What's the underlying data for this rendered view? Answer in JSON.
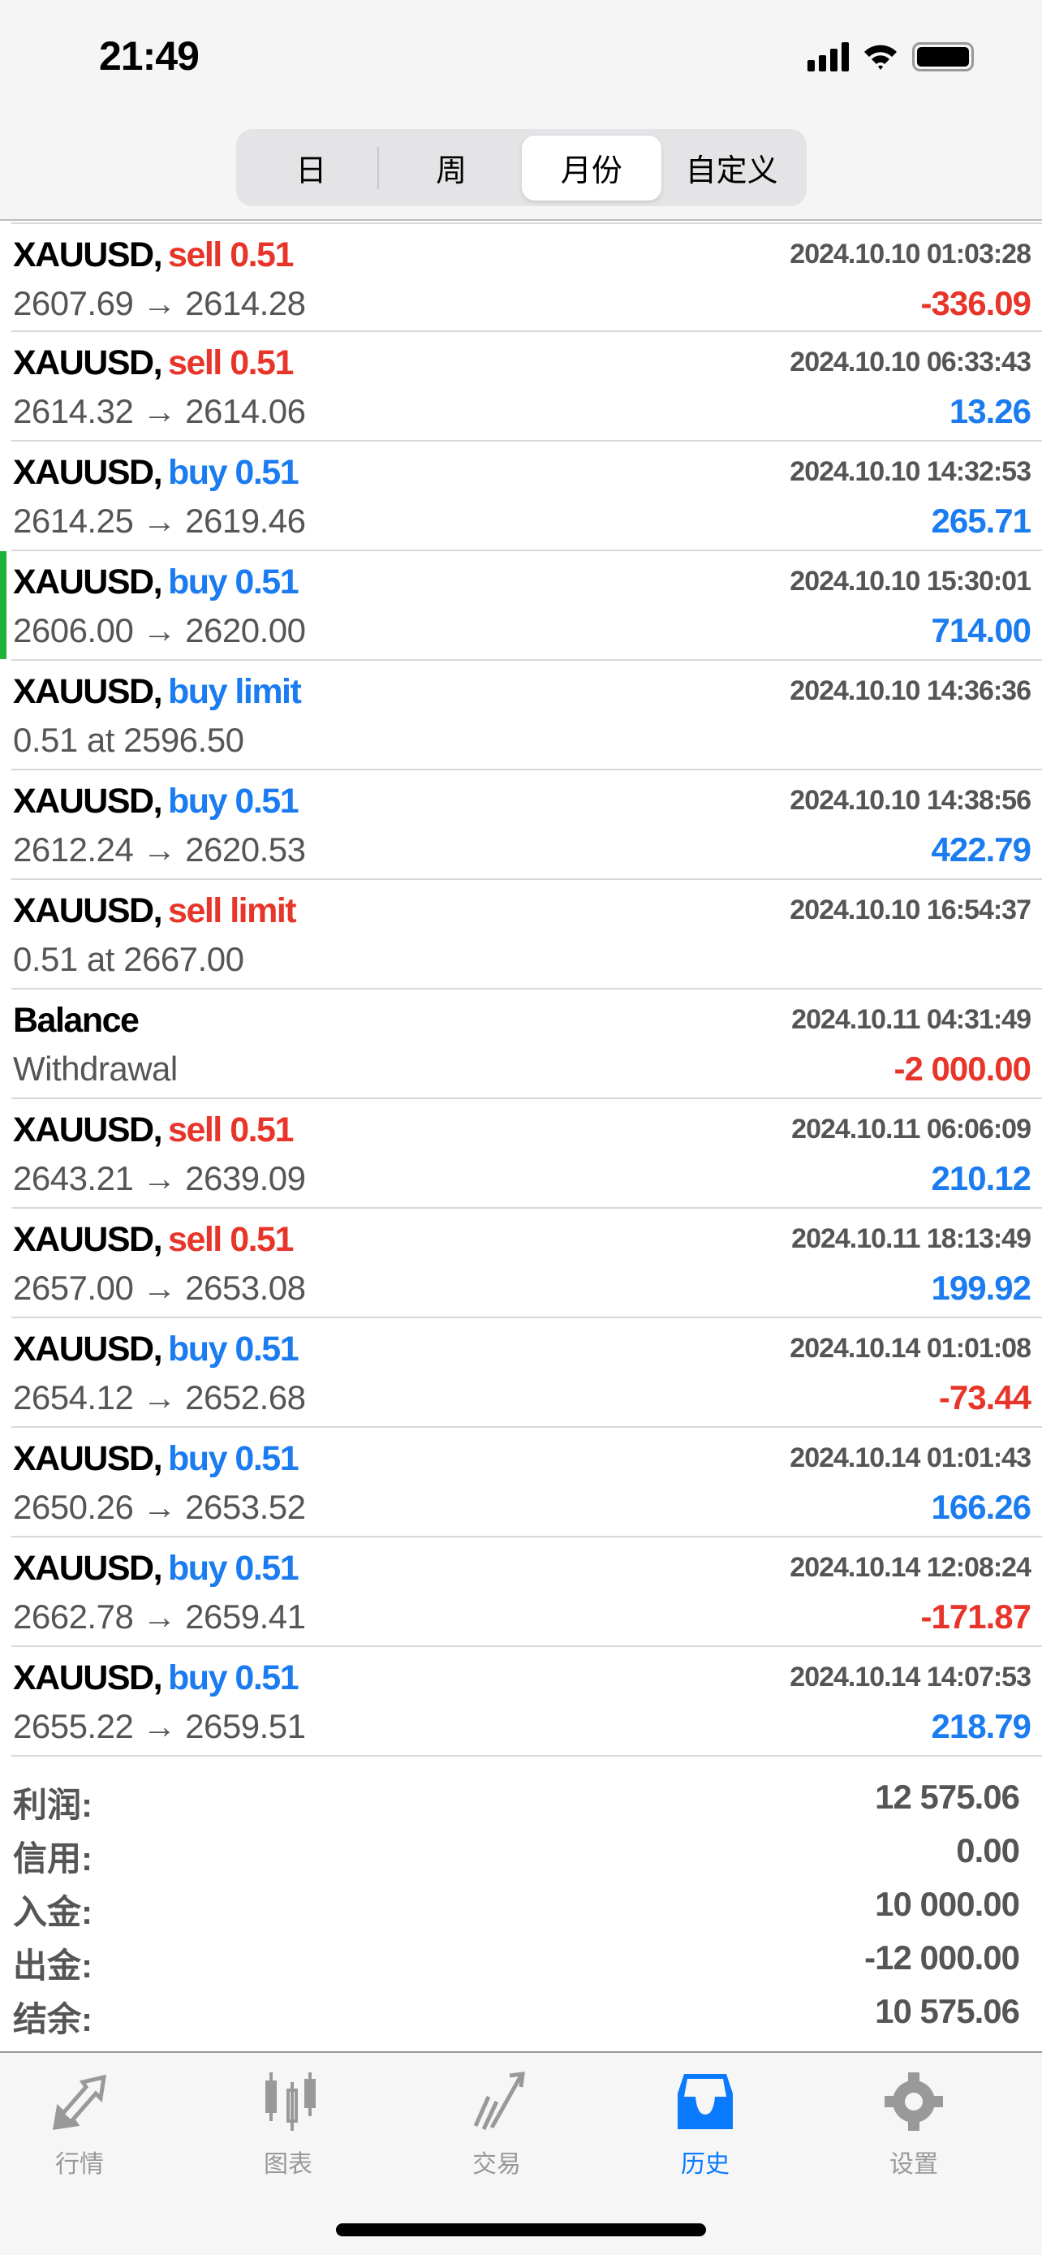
{
  "status_bar": {
    "time": "21:49"
  },
  "segments": {
    "items": [
      "日",
      "周",
      "月份",
      "自定义"
    ],
    "active": 2
  },
  "colors": {
    "sell": "#e8352a",
    "buy": "#1a7cf0",
    "loss": "#e8352a",
    "gain": "#1a7cf0",
    "active_tab": "#0a7aff",
    "marker": "#1fb33b"
  },
  "rows": [
    {
      "symbol": "XAUUSD,",
      "side": "sell 0.51",
      "type": "sell",
      "date": "2024.10.10 01:03:28",
      "prices": "2607.69 → 2614.28",
      "profit": "-336.09",
      "neg": true
    },
    {
      "symbol": "XAUUSD,",
      "side": "sell 0.51",
      "type": "sell",
      "date": "2024.10.10 06:33:43",
      "prices": "2614.32 → 2614.06",
      "profit": "13.26",
      "neg": false
    },
    {
      "symbol": "XAUUSD,",
      "side": "buy 0.51",
      "type": "buy",
      "date": "2024.10.10 14:32:53",
      "prices": "2614.25 → 2619.46",
      "profit": "265.71",
      "neg": false
    },
    {
      "symbol": "XAUUSD,",
      "side": "buy 0.51",
      "type": "buy",
      "date": "2024.10.10 15:30:01",
      "prices": "2606.00 → 2620.00",
      "profit": "714.00",
      "neg": false,
      "marked": true
    },
    {
      "symbol": "XAUUSD,",
      "side": "buy limit",
      "type": "buy",
      "date": "2024.10.10 14:36:36",
      "prices": "0.51 at 2596.50",
      "profit": "",
      "neg": false
    },
    {
      "symbol": "XAUUSD,",
      "side": "buy 0.51",
      "type": "buy",
      "date": "2024.10.10 14:38:56",
      "prices": "2612.24 → 2620.53",
      "profit": "422.79",
      "neg": false
    },
    {
      "symbol": "XAUUSD,",
      "side": "sell limit",
      "type": "sell",
      "date": "2024.10.10 16:54:37",
      "prices": "0.51 at 2667.00",
      "profit": "",
      "neg": false
    },
    {
      "symbol": "Balance",
      "side": "",
      "type": "",
      "date": "2024.10.11 04:31:49",
      "prices": "Withdrawal",
      "profit": "-2 000.00",
      "neg": true
    },
    {
      "symbol": "XAUUSD,",
      "side": "sell 0.51",
      "type": "sell",
      "date": "2024.10.11 06:06:09",
      "prices": "2643.21 → 2639.09",
      "profit": "210.12",
      "neg": false
    },
    {
      "symbol": "XAUUSD,",
      "side": "sell 0.51",
      "type": "sell",
      "date": "2024.10.11 18:13:49",
      "prices": "2657.00 → 2653.08",
      "profit": "199.92",
      "neg": false
    },
    {
      "symbol": "XAUUSD,",
      "side": "buy 0.51",
      "type": "buy",
      "date": "2024.10.14 01:01:08",
      "prices": "2654.12 → 2652.68",
      "profit": "-73.44",
      "neg": true
    },
    {
      "symbol": "XAUUSD,",
      "side": "buy 0.51",
      "type": "buy",
      "date": "2024.10.14 01:01:43",
      "prices": "2650.26 → 2653.52",
      "profit": "166.26",
      "neg": false
    },
    {
      "symbol": "XAUUSD,",
      "side": "buy 0.51",
      "type": "buy",
      "date": "2024.10.14 12:08:24",
      "prices": "2662.78 → 2659.41",
      "profit": "-171.87",
      "neg": true
    },
    {
      "symbol": "XAUUSD,",
      "side": "buy 0.51",
      "type": "buy",
      "date": "2024.10.14 14:07:53",
      "prices": "2655.22 → 2659.51",
      "profit": "218.79",
      "neg": false
    }
  ],
  "summary": [
    {
      "label": "利润:",
      "value": "12 575.06"
    },
    {
      "label": "信用:",
      "value": "0.00"
    },
    {
      "label": "入金:",
      "value": "10 000.00"
    },
    {
      "label": "出金:",
      "value": "-12 000.00"
    },
    {
      "label": "结余:",
      "value": "10 575.06"
    }
  ],
  "tabbar": {
    "items": [
      {
        "label": "行情",
        "icon": "quotes-arrows-icon"
      },
      {
        "label": "图表",
        "icon": "candlestick-chart-icon"
      },
      {
        "label": "交易",
        "icon": "trade-trend-icon"
      },
      {
        "label": "历史",
        "icon": "history-inbox-icon"
      },
      {
        "label": "设置",
        "icon": "gear-icon"
      }
    ],
    "active": 3
  }
}
